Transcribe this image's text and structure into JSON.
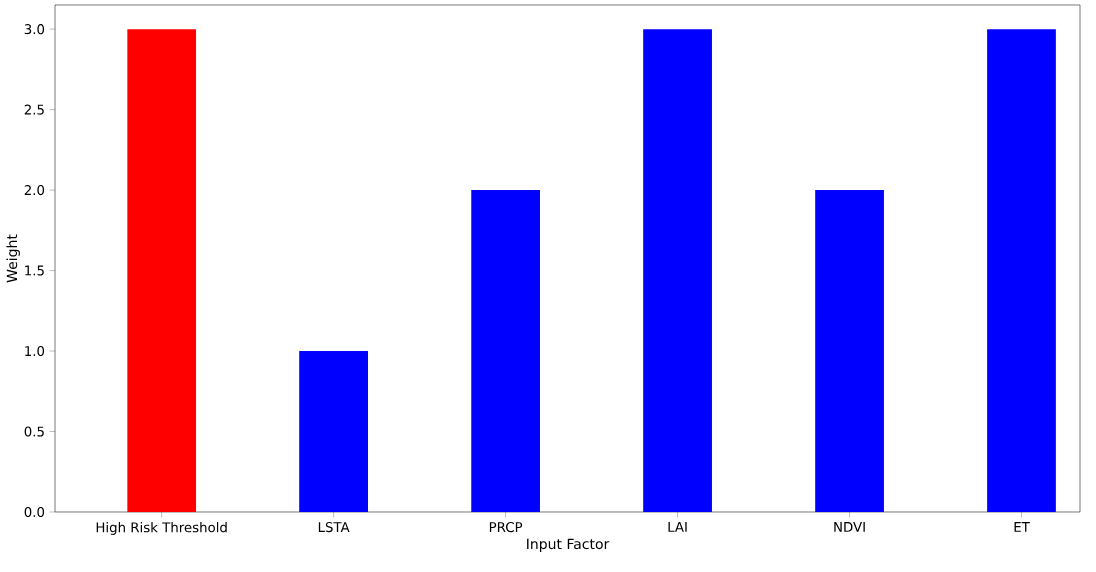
{
  "chart_data": {
    "type": "bar",
    "xlabel": "Input Factor",
    "ylabel": "Weight",
    "categories": [
      "High Risk Threshold",
      "LSTA",
      "PRCP",
      "LAI",
      "NDVI",
      "ET"
    ],
    "values": [
      3,
      1,
      2,
      3,
      2,
      3
    ],
    "colors": [
      "#ff0000",
      "#0000ff",
      "#0000ff",
      "#0000ff",
      "#0000ff",
      "#0000ff"
    ],
    "ylim": [
      0,
      3.15
    ],
    "yticks": [
      {
        "value": 0,
        "label": "0.0"
      },
      {
        "value": 0.5,
        "label": "0.5"
      },
      {
        "value": 1,
        "label": "1.0"
      },
      {
        "value": 1.5,
        "label": "1.5"
      },
      {
        "value": 2,
        "label": "2.0"
      },
      {
        "value": 2.5,
        "label": "2.5"
      },
      {
        "value": 3,
        "label": "3.0"
      }
    ]
  }
}
